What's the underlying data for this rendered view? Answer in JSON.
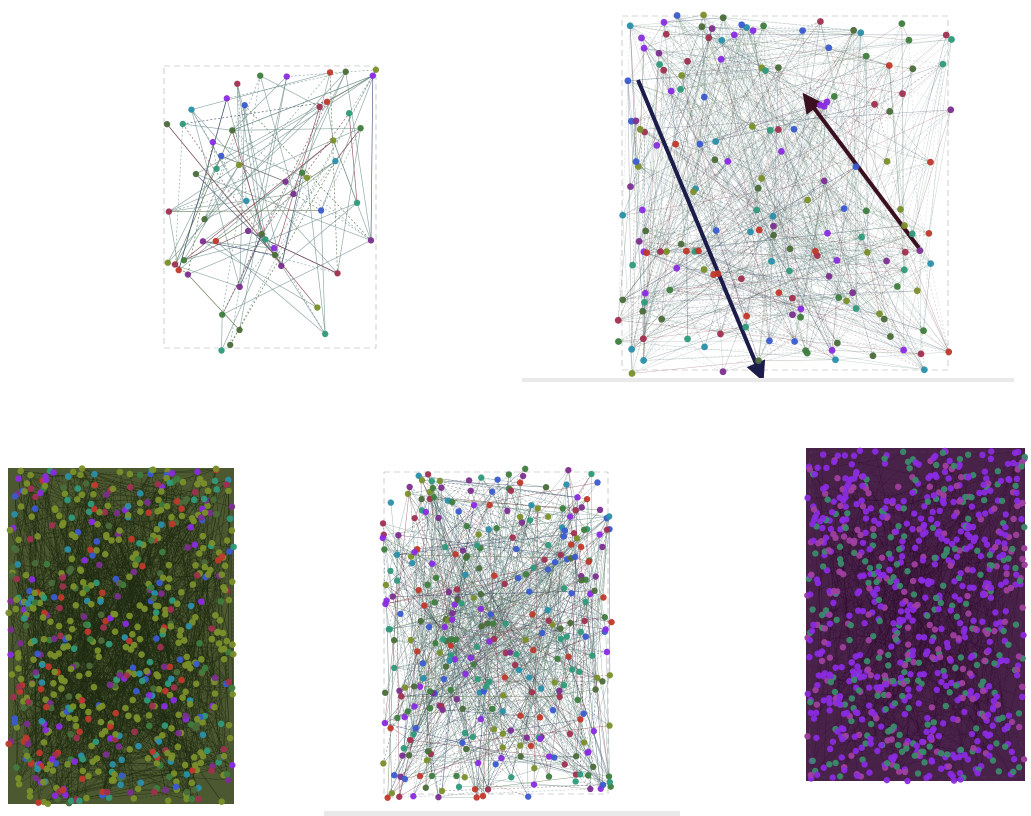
{
  "colors": {
    "background": "#ffffff",
    "edge": "#6f8f8a",
    "node_palette": [
      "#3a5bd0",
      "#2f9a7a",
      "#8a2be2",
      "#c0392b",
      "#7a8f2a",
      "#2a8faa",
      "#4b6b3a",
      "#7b2f8f",
      "#a03050",
      "#3e7d3e"
    ],
    "arrow_dark_navy": "#1c1c4a",
    "arrow_dark_maroon": "#3a1020",
    "dense_fill_olive": "#3d4a1e",
    "dense_fill_purple": "#3a0f3a"
  },
  "graphs": [
    {
      "id": "graph-1",
      "density": "sparse",
      "nodes": 55,
      "edges": 120,
      "dominant": "mixed"
    },
    {
      "id": "graph-2",
      "density": "medium",
      "nodes": 170,
      "edges": 900,
      "dominant": "mixed",
      "highlight_arrows": 2
    },
    {
      "id": "graph-3",
      "density": "very-dense",
      "nodes": 700,
      "edges": 1400,
      "dominant": "olive"
    },
    {
      "id": "graph-4",
      "density": "dense",
      "nodes": 330,
      "edges": 900,
      "dominant": "mixed"
    },
    {
      "id": "graph-5",
      "density": "very-dense",
      "nodes": 900,
      "edges": 600,
      "dominant": "purple"
    }
  ]
}
